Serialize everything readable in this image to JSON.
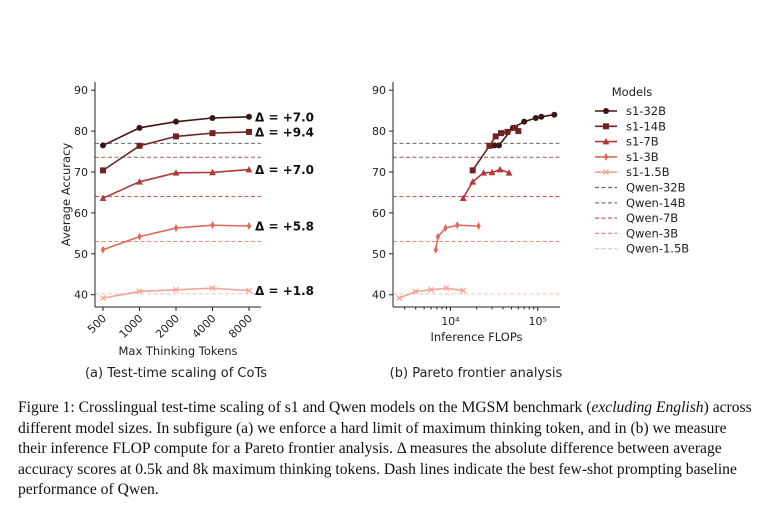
{
  "chart_data": [
    {
      "type": "line",
      "panel_label": "(a) Test-time scaling of CoTs",
      "xlabel": "Max Thinking Tokens",
      "ylabel": "Average Accuracy",
      "categories": [
        "500",
        "1000",
        "2000",
        "4000",
        "8000"
      ],
      "ylim": [
        37,
        92
      ],
      "yticks": [
        40,
        50,
        60,
        70,
        80,
        90
      ],
      "series": [
        {
          "name": "s1-32B",
          "values": [
            76.5,
            80.8,
            82.3,
            83.2,
            83.5
          ],
          "delta": "Δ = +7.0"
        },
        {
          "name": "s1-14B",
          "values": [
            70.4,
            76.4,
            78.7,
            79.5,
            79.8
          ],
          "delta": "Δ = +9.4"
        },
        {
          "name": "s1-7B",
          "values": [
            63.6,
            67.6,
            69.8,
            69.9,
            70.6
          ],
          "delta": "Δ = +7.0"
        },
        {
          "name": "s1-3B",
          "values": [
            51.0,
            54.2,
            56.3,
            57.0,
            56.8
          ],
          "delta": "Δ = +5.8"
        },
        {
          "name": "s1-1.5B",
          "values": [
            39.2,
            40.8,
            41.2,
            41.6,
            41.0
          ],
          "delta": "Δ = +1.8"
        }
      ],
      "baselines": [
        {
          "name": "Qwen-32B",
          "value": 77.0
        },
        {
          "name": "Qwen-14B",
          "value": 73.6
        },
        {
          "name": "Qwen-7B",
          "value": 64.0
        },
        {
          "name": "Qwen-3B",
          "value": 53.0
        },
        {
          "name": "Qwen-1.5B",
          "value": 40.2
        }
      ]
    },
    {
      "type": "line",
      "panel_label": "(b) Pareto frontier analysis",
      "xlabel": "Inference FLOPs",
      "ylabel": "",
      "xscale": "log",
      "xlim": [
        2200,
        180000
      ],
      "xtick_labels": [
        "10⁴",
        "10⁵"
      ],
      "xtick_values": [
        10000,
        100000
      ],
      "ylim": [
        37,
        92
      ],
      "yticks": [
        40,
        50,
        60,
        70,
        80,
        90
      ],
      "series": [
        {
          "name": "s1-32B",
          "points": [
            [
              32000,
              76.5
            ],
            [
              36000,
              76.5
            ],
            [
              52000,
              80.8
            ],
            [
              70000,
              82.3
            ],
            [
              95000,
              83.2
            ],
            [
              110000,
              83.5
            ],
            [
              155000,
              84.0
            ]
          ]
        },
        {
          "name": "s1-14B",
          "points": [
            [
              18000,
              70.4
            ],
            [
              28000,
              76.4
            ],
            [
              33000,
              78.7
            ],
            [
              38000,
              79.5
            ],
            [
              45000,
              79.8
            ],
            [
              55000,
              80.8
            ],
            [
              60000,
              80.0
            ]
          ]
        },
        {
          "name": "s1-7B",
          "points": [
            [
              14000,
              63.6
            ],
            [
              18000,
              67.6
            ],
            [
              24000,
              69.8
            ],
            [
              30000,
              69.9
            ],
            [
              37000,
              70.6
            ],
            [
              47000,
              69.8
            ]
          ]
        },
        {
          "name": "s1-3B",
          "points": [
            [
              6800,
              51.0
            ],
            [
              7200,
              54.2
            ],
            [
              8800,
              56.3
            ],
            [
              12000,
              57.0
            ],
            [
              21000,
              56.8
            ]
          ]
        },
        {
          "name": "s1-1.5B",
          "points": [
            [
              2600,
              39.2
            ],
            [
              4000,
              40.8
            ],
            [
              6000,
              41.2
            ],
            [
              9000,
              41.6
            ],
            [
              14000,
              41.0
            ]
          ]
        }
      ],
      "baselines": [
        {
          "name": "Qwen-32B",
          "value": 77.0
        },
        {
          "name": "Qwen-14B",
          "value": 73.6
        },
        {
          "name": "Qwen-7B",
          "value": 64.0
        },
        {
          "name": "Qwen-3B",
          "value": 53.0
        },
        {
          "name": "Qwen-1.5B",
          "value": 40.2
        }
      ]
    }
  ],
  "legend": {
    "title": "Models",
    "position": "right",
    "entries": [
      "s1-32B",
      "s1-14B",
      "s1-7B",
      "s1-3B",
      "s1-1.5B",
      "Qwen-32B",
      "Qwen-14B",
      "Qwen-7B",
      "Qwen-3B",
      "Qwen-1.5B"
    ]
  },
  "colors": {
    "s1-32B": "#3d1515",
    "s1-14B": "#6e2424",
    "s1-7B": "#b03a3a",
    "s1-3B": "#e06a5c",
    "s1-1.5B": "#f2a596",
    "Qwen-32B": "#6b6b6b",
    "Qwen-14B": "#9b5a5a",
    "Qwen-7B": "#cc5a5a",
    "Qwen-3B": "#ea8c7d",
    "Qwen-1.5B": "#f6c2b5"
  },
  "markers": {
    "s1-32B": "circle",
    "s1-14B": "square",
    "s1-7B": "triangle",
    "s1-3B": "thin-diamond",
    "s1-1.5B": "x"
  },
  "caption": {
    "fig": "Figure 1:",
    "p1": " Crosslingual test-time scaling of s1 and Qwen models on the MGSM benchmark (",
    "em1": "excluding English",
    "p2": ") across different model sizes. In subfigure (a) we enforce a hard limit of maximum thinking token, and in (b) we measure their inference FLOP compute for a Pareto frontier analysis. Δ measures the absolute difference between average accuracy scores at 0.5k and 8k maximum thinking tokens. Dash lines indicate the best few-shot prompting baseline performance of Qwen."
  }
}
